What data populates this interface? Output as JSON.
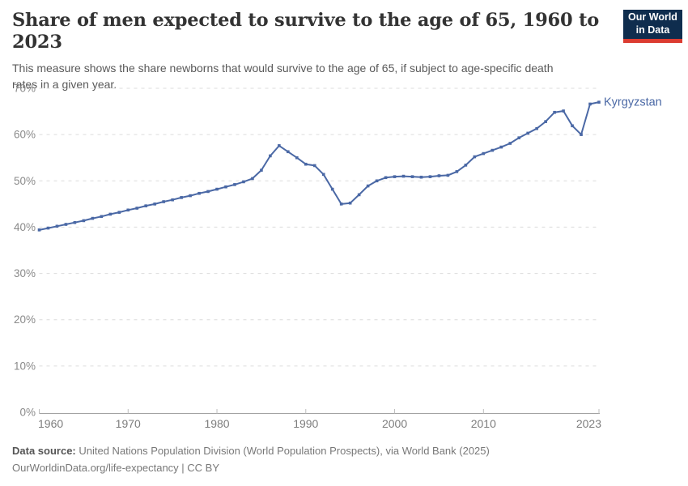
{
  "header": {
    "title": "Share of men expected to survive to the age of 65, 1960 to 2023",
    "subtitle": "This measure shows the share newborns that would survive to the age of 65, if subject to age-specific death rates in a given year."
  },
  "logo": {
    "line1": "Our World",
    "line2": "in Data",
    "bg_color": "#0f2d4e",
    "accent_color": "#dc3c31"
  },
  "footer": {
    "source_label": "Data source:",
    "source_text": " United Nations Population Division (World Population Prospects), via World Bank (2025)",
    "license_text": "OurWorldinData.org/life-expectancy | CC BY"
  },
  "chart_data": {
    "type": "line",
    "title": "Share of men expected to survive to the age of 65, 1960 to 2023",
    "xlabel": "",
    "ylabel": "",
    "xlim": [
      1960,
      2023
    ],
    "ylim": [
      0,
      70
    ],
    "yticks": [
      0,
      10,
      20,
      30,
      40,
      50,
      60,
      70
    ],
    "ytick_suffix": "%",
    "xticks": [
      1960,
      1970,
      1980,
      1990,
      2000,
      2010,
      2023
    ],
    "grid": "horizontal-dashed",
    "legend_position": "line-end-label",
    "line_color": "#4a68a5",
    "grid_color": "#dcdcdc",
    "axis_color": "#a3a3a3",
    "tick_label_color": "#8a8a8a",
    "series": [
      {
        "name": "Kyrgyzstan",
        "color": "#4a68a5",
        "x": [
          1960,
          1961,
          1962,
          1963,
          1964,
          1965,
          1966,
          1967,
          1968,
          1969,
          1970,
          1971,
          1972,
          1973,
          1974,
          1975,
          1976,
          1977,
          1978,
          1979,
          1980,
          1981,
          1982,
          1983,
          1984,
          1985,
          1986,
          1987,
          1988,
          1989,
          1990,
          1991,
          1992,
          1993,
          1994,
          1995,
          1996,
          1997,
          1998,
          1999,
          2000,
          2001,
          2002,
          2003,
          2004,
          2005,
          2006,
          2007,
          2008,
          2009,
          2010,
          2011,
          2012,
          2013,
          2014,
          2015,
          2016,
          2017,
          2018,
          2019,
          2020,
          2021,
          2022,
          2023
        ],
        "values": [
          39.4,
          39.8,
          40.2,
          40.6,
          41.0,
          41.4,
          41.9,
          42.3,
          42.8,
          43.2,
          43.7,
          44.1,
          44.6,
          45.0,
          45.5,
          45.9,
          46.4,
          46.8,
          47.3,
          47.7,
          48.2,
          48.7,
          49.2,
          49.8,
          50.5,
          52.3,
          55.4,
          57.6,
          56.3,
          55.0,
          53.6,
          53.3,
          51.4,
          48.2,
          45.0,
          45.2,
          47.0,
          48.9,
          50.0,
          50.7,
          50.9,
          51.0,
          50.9,
          50.8,
          50.9,
          51.1,
          51.2,
          52.0,
          53.4,
          55.2,
          55.9,
          56.6,
          57.3,
          58.1,
          59.3,
          60.3,
          61.3,
          62.8,
          64.8,
          65.1,
          61.9,
          60.0,
          66.6,
          67.0
        ]
      }
    ]
  }
}
